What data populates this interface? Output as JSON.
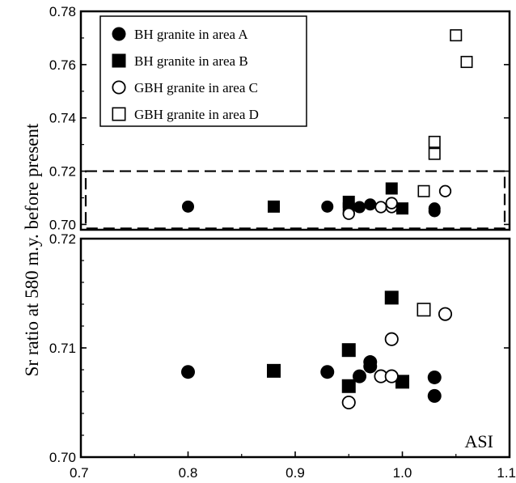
{
  "chart_data": [
    {
      "panel": "upper",
      "type": "scatter",
      "ylabel": "Sr ratio at 580 m.y. before present",
      "xlim": [
        0.7,
        1.1
      ],
      "ylim": [
        0.698,
        0.78
      ],
      "yticks": [
        "0.70",
        "0.72",
        "0.74",
        "0.76",
        "0.78"
      ],
      "yticks_values": [
        0.7,
        0.72,
        0.74,
        0.76,
        0.78
      ],
      "legend_position": "top-left",
      "zoom_box": {
        "x": [
          0.7,
          1.1
        ],
        "y": [
          0.6985,
          0.72
        ]
      },
      "series": [
        {
          "name": "BH granite in area A",
          "marker": "filled-circle",
          "points": [
            [
              0.8,
              0.7067
            ],
            [
              0.93,
              0.7067
            ],
            [
              0.96,
              0.7065
            ],
            [
              0.97,
              0.7075
            ],
            [
              1.03,
              0.706
            ],
            [
              1.03,
              0.705
            ]
          ]
        },
        {
          "name": "BH granite in area B",
          "marker": "filled-square",
          "points": [
            [
              0.88,
              0.7067
            ],
            [
              0.95,
              0.7085
            ],
            [
              0.95,
              0.706
            ],
            [
              0.99,
              0.7135
            ],
            [
              1.0,
              0.706
            ]
          ]
        },
        {
          "name": "GBH granite in area C",
          "marker": "open-circle",
          "points": [
            [
              0.95,
              0.704
            ],
            [
              0.98,
              0.7065
            ],
            [
              0.99,
              0.7065
            ],
            [
              0.99,
              0.708
            ],
            [
              1.04,
              0.7125
            ]
          ]
        },
        {
          "name": "GBH granite in area D",
          "marker": "open-square",
          "points": [
            [
              1.02,
              0.7125
            ],
            [
              1.03,
              0.731
            ],
            [
              1.03,
              0.7265
            ],
            [
              1.05,
              0.771
            ],
            [
              1.06,
              0.761
            ]
          ]
        }
      ]
    },
    {
      "panel": "lower",
      "type": "scatter",
      "xlabel": "ASI",
      "xlim": [
        0.7,
        1.1
      ],
      "ylim": [
        0.7,
        0.72
      ],
      "xticks": [
        "0.7",
        "0.8",
        "0.9",
        "1.0",
        "1.1"
      ],
      "xticks_values": [
        0.7,
        0.8,
        0.9,
        1.0,
        1.1
      ],
      "yticks": [
        "0.70",
        "0.71",
        "0.72"
      ],
      "yticks_values": [
        0.7,
        0.71,
        0.72
      ],
      "series": [
        {
          "name": "BH granite in area A",
          "marker": "filled-circle",
          "points": [
            [
              0.8,
              0.7078
            ],
            [
              0.93,
              0.7078
            ],
            [
              0.96,
              0.7074
            ],
            [
              0.97,
              0.7083
            ],
            [
              0.97,
              0.7087
            ],
            [
              1.03,
              0.7073
            ],
            [
              1.03,
              0.7056
            ]
          ]
        },
        {
          "name": "BH granite in area B",
          "marker": "filled-square",
          "points": [
            [
              0.88,
              0.7079
            ],
            [
              0.95,
              0.7098
            ],
            [
              0.95,
              0.7065
            ],
            [
              0.99,
              0.7146
            ],
            [
              1.0,
              0.7069
            ]
          ]
        },
        {
          "name": "GBH granite in area C",
          "marker": "open-circle",
          "points": [
            [
              0.95,
              0.705
            ],
            [
              0.98,
              0.7074
            ],
            [
              0.99,
              0.7074
            ],
            [
              0.99,
              0.7108
            ],
            [
              1.04,
              0.7131
            ]
          ]
        },
        {
          "name": "GBH granite in area D",
          "marker": "open-square",
          "points": [
            [
              1.02,
              0.7135
            ]
          ]
        }
      ]
    }
  ]
}
